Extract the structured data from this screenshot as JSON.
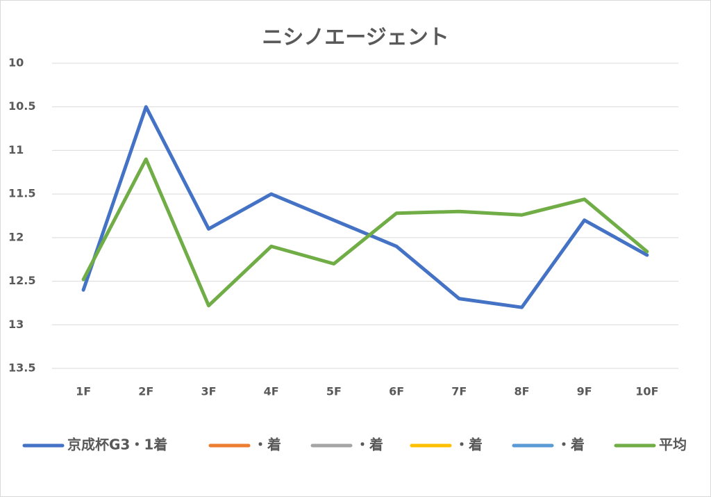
{
  "chart_data": {
    "type": "line",
    "title": "ニシノエージェント",
    "categories": [
      "1F",
      "2F",
      "3F",
      "4F",
      "5F",
      "6F",
      "7F",
      "8F",
      "9F",
      "10F"
    ],
    "series": [
      {
        "name": "京成杯G3・1着",
        "color": "#4472c4",
        "values": [
          12.6,
          10.5,
          11.9,
          11.5,
          11.8,
          12.1,
          12.7,
          12.8,
          11.8,
          12.2
        ]
      },
      {
        "name": "・着",
        "color": "#ed7d31",
        "values": [
          null,
          null,
          null,
          null,
          null,
          null,
          null,
          null,
          null,
          null
        ]
      },
      {
        "name": "・着",
        "color": "#a5a5a5",
        "values": [
          null,
          null,
          null,
          null,
          null,
          null,
          null,
          null,
          null,
          null
        ]
      },
      {
        "name": "・着",
        "color": "#ffc000",
        "values": [
          null,
          null,
          null,
          null,
          null,
          null,
          null,
          null,
          null,
          null
        ]
      },
      {
        "name": "・着",
        "color": "#5b9bd5",
        "values": [
          null,
          null,
          null,
          null,
          null,
          null,
          null,
          null,
          null,
          null
        ]
      },
      {
        "name": "平均",
        "color": "#70ad47",
        "values": [
          12.48,
          11.1,
          12.78,
          12.1,
          12.3,
          11.72,
          11.7,
          11.74,
          11.56,
          12.16
        ]
      }
    ],
    "ylim": [
      10,
      13.5
    ],
    "y_inverted": true,
    "yticks": [
      10,
      10.5,
      11,
      11.5,
      12,
      12.5,
      13,
      13.5
    ],
    "grid": true,
    "legend": "bottom"
  }
}
